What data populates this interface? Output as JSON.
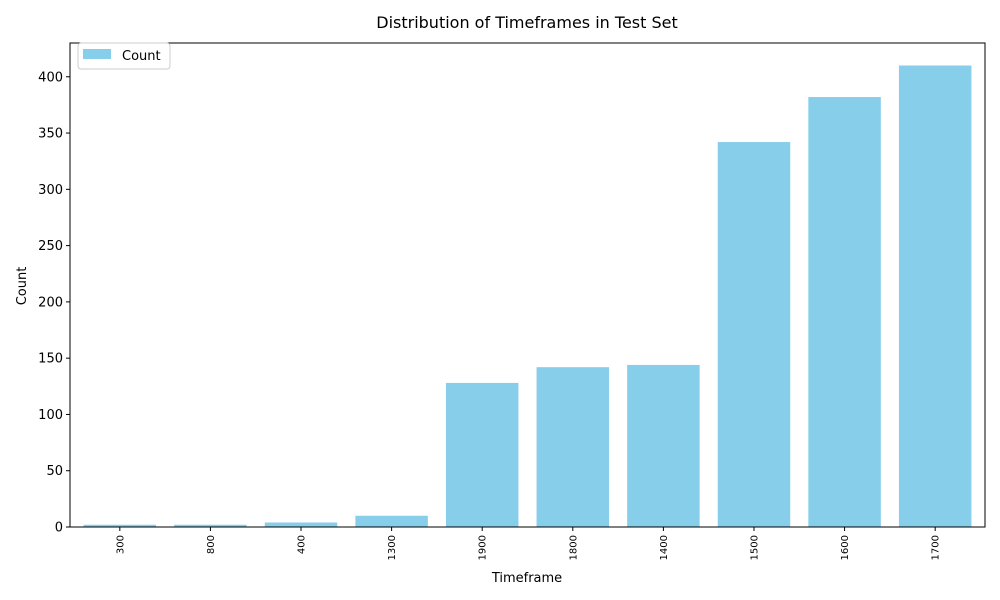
{
  "chart_data": {
    "type": "bar",
    "title": "Distribution of Timeframes in Test Set",
    "xlabel": "Timeframe",
    "ylabel": "Count",
    "categories": [
      "300",
      "800",
      "400",
      "1300",
      "1900",
      "1800",
      "1400",
      "1500",
      "1600",
      "1700"
    ],
    "series": [
      {
        "name": "Count",
        "values": [
          2,
          2,
          4,
          10,
          128,
          142,
          144,
          342,
          382,
          410
        ]
      }
    ],
    "ylim": [
      0,
      430
    ],
    "yticks": [
      0,
      50,
      100,
      150,
      200,
      250,
      300,
      350,
      400
    ],
    "ytick_labels": [
      "0",
      "50",
      "100",
      "150",
      "200",
      "250",
      "300",
      "350",
      "400"
    ],
    "bar_color": "#87CEEB",
    "legend_position": "top-left",
    "grid": false,
    "xtick_rotation": "vertical"
  }
}
